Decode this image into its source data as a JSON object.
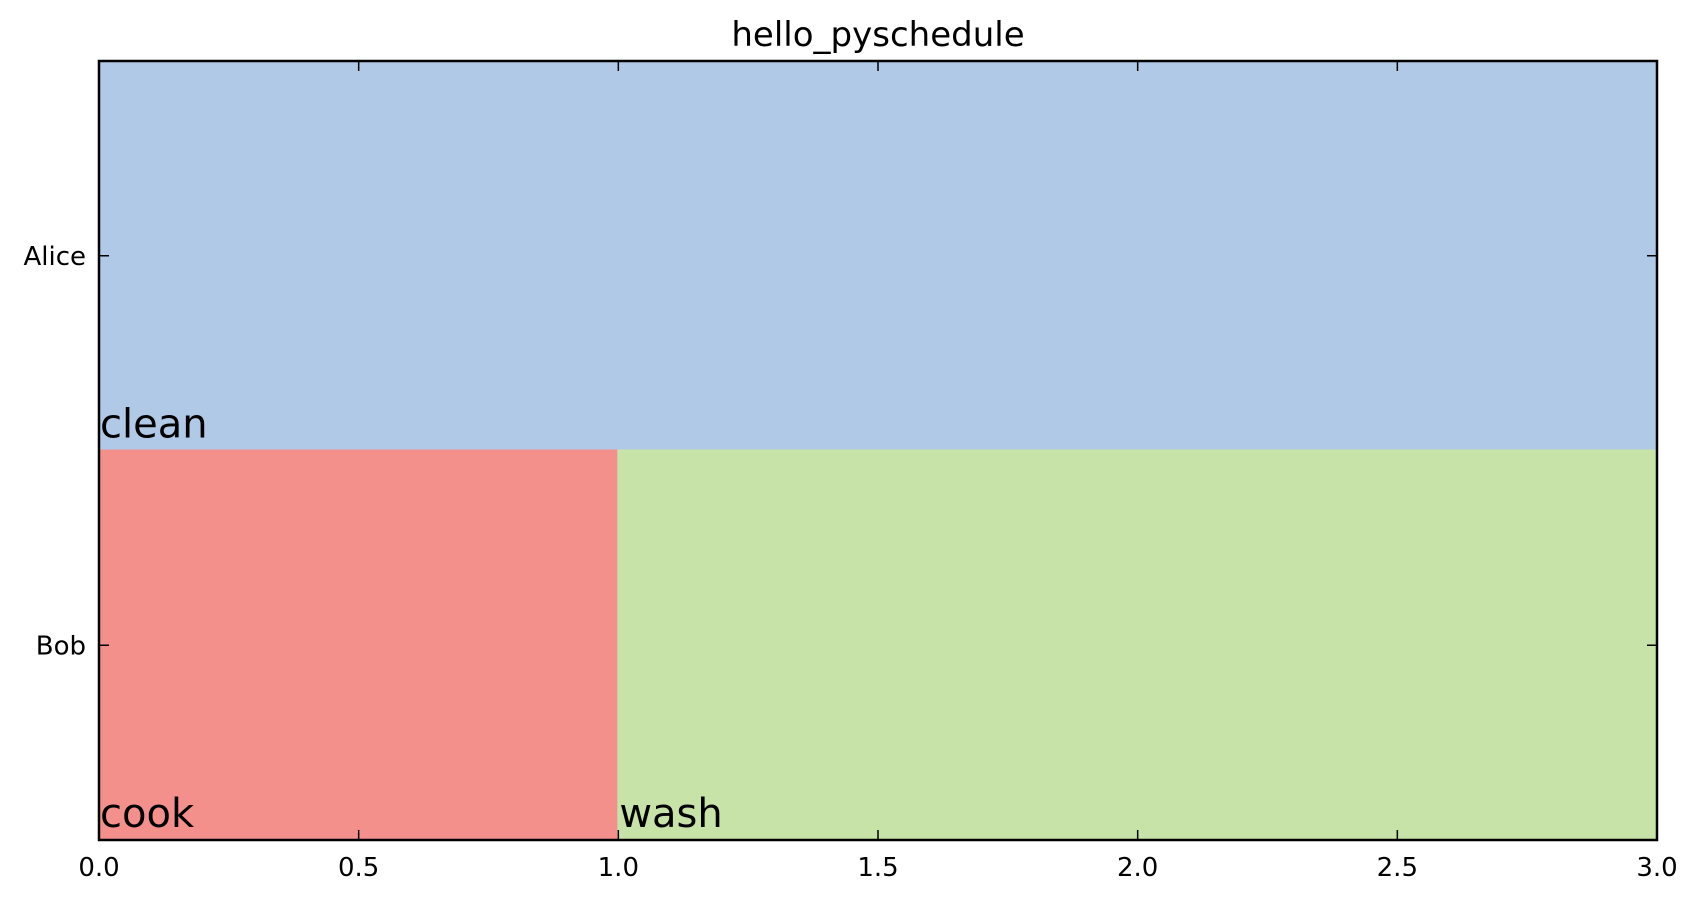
{
  "chart_data": {
    "type": "gantt",
    "title": "hello_pyschedule",
    "xlabel": "",
    "ylabel": "",
    "xlim": [
      0.0,
      3.0
    ],
    "x_ticks": [
      "0.0",
      "0.5",
      "1.0",
      "1.5",
      "2.0",
      "2.5",
      "3.0"
    ],
    "x_tick_values": [
      0.0,
      0.5,
      1.0,
      1.5,
      2.0,
      2.5,
      3.0
    ],
    "rows": [
      "Alice",
      "Bob"
    ],
    "tasks": [
      {
        "resource": "Alice",
        "label": "clean",
        "start": 0.0,
        "end": 3.0,
        "color": "#b0c9e7"
      },
      {
        "resource": "Bob",
        "label": "cook",
        "start": 0.0,
        "end": 1.0,
        "color": "#f3908c"
      },
      {
        "resource": "Bob",
        "label": "wash",
        "start": 1.0,
        "end": 3.0,
        "color": "#c7e3a8"
      }
    ],
    "grid": false,
    "legend": "none"
  }
}
